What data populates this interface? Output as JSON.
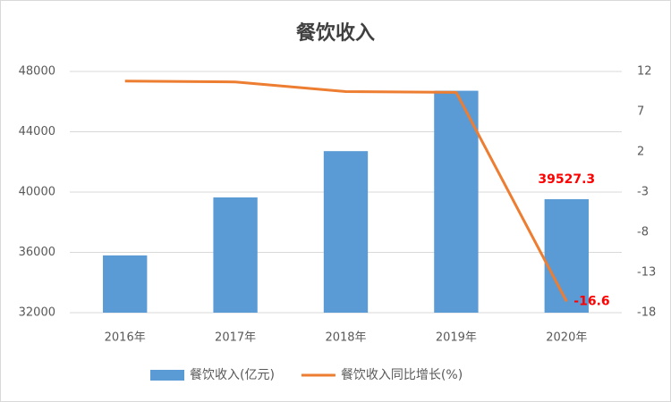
{
  "chart_data": {
    "type": "bar-line",
    "title": "餐饮收入",
    "categories": [
      "2016年",
      "2017年",
      "2018年",
      "2019年",
      "2020年"
    ],
    "series": [
      {
        "name": "餐饮收入(亿元)",
        "color": "#5b9bd5",
        "type": "bar",
        "values": [
          35799,
          39644,
          42716,
          46721,
          39527.3
        ],
        "value_labels": [
          null,
          null,
          null,
          null,
          "39527.3"
        ]
      },
      {
        "name": "餐饮收入同比增长(%)",
        "color": "#ed7d31",
        "type": "line",
        "axis": "y2",
        "values": [
          10.8,
          10.7,
          9.5,
          9.4,
          -16.6
        ],
        "value_labels": [
          null,
          null,
          null,
          null,
          "-16.6"
        ]
      }
    ],
    "ylim": [
      32000,
      48000
    ],
    "yticks": [
      32000,
      36000,
      40000,
      44000,
      48000
    ],
    "y2lim": [
      -18,
      12
    ],
    "y2ticks": [
      -18,
      -13,
      -8,
      -3,
      2,
      7,
      12
    ],
    "grid": true,
    "legend": "bottom"
  }
}
